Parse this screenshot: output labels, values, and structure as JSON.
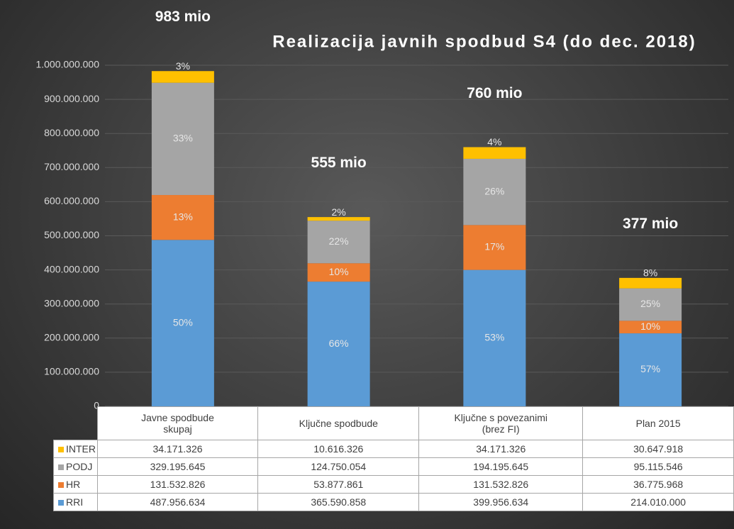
{
  "chart_data": {
    "type": "stacked_bar",
    "title": "Realizacija javnih spodbud S4 (do dec. 2018)",
    "categories": [
      "Javne spodbude skupaj",
      "Ključne spodbude",
      "Ključne s povezanimi (brez FI)",
      "Plan 2015"
    ],
    "total_labels": [
      "983 mio",
      "555 mio",
      "760 mio",
      "377 mio"
    ],
    "series": [
      {
        "name": "RRI",
        "color": "#5b9bd5",
        "values": [
          487956634,
          365590858,
          399956634,
          214010000
        ],
        "value_labels": [
          "487.956.634",
          "365.590.858",
          "399.956.634",
          "214.010.000"
        ],
        "percent_labels": [
          "50%",
          "66%",
          "53%",
          "57%"
        ]
      },
      {
        "name": "HR",
        "color": "#ed7d31",
        "values": [
          131532826,
          53877861,
          131532826,
          36775968
        ],
        "value_labels": [
          "131.532.826",
          "53.877.861",
          "131.532.826",
          "36.775.968"
        ],
        "percent_labels": [
          "13%",
          "10%",
          "17%",
          "10%"
        ]
      },
      {
        "name": "PODJ",
        "color": "#a5a5a5",
        "values": [
          329195645,
          124750054,
          194195645,
          95115546
        ],
        "value_labels": [
          "329.195.645",
          "124.750.054",
          "194.195.645",
          "95.115.546"
        ],
        "percent_labels": [
          "33%",
          "22%",
          "26%",
          "25%"
        ]
      },
      {
        "name": "INTER",
        "color": "#ffc000",
        "values": [
          34171326,
          10616326,
          34171326,
          30647918
        ],
        "value_labels": [
          "34.171.326",
          "10.616.326",
          "34.171.326",
          "30.647.918"
        ],
        "percent_labels": [
          "3%",
          "2%",
          "4%",
          "8%"
        ]
      }
    ],
    "ylim": [
      0,
      1000000000
    ],
    "yticks": [
      0,
      {
        "value": 100000000,
        "label": "100.000.000"
      },
      {
        "value": 200000000,
        "label": "200.000.000"
      },
      {
        "value": 300000000,
        "label": "300.000.000"
      },
      {
        "value": 400000000,
        "label": "400.000.000"
      },
      {
        "value": 500000000,
        "label": "500.000.000"
      },
      {
        "value": 600000000,
        "label": "600.000.000"
      },
      {
        "value": 700000000,
        "label": "700.000.000"
      },
      {
        "value": 800000000,
        "label": "800.000.000"
      },
      {
        "value": 900000000,
        "label": "900.000.000"
      },
      {
        "value": 1000000000,
        "label": "1.000.000.000"
      }
    ],
    "grid": true
  }
}
